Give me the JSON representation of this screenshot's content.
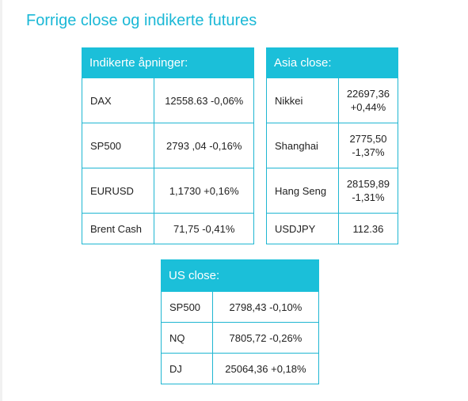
{
  "title": "Forrige close og indikerte futures",
  "indikerte": {
    "header": "Indikerte åpninger:",
    "rows": [
      {
        "name": "DAX",
        "value": "12558.63 -0,06%"
      },
      {
        "name": "SP500",
        "value": "2793 ,04 -0,16%"
      },
      {
        "name": "EURUSD",
        "value": "1,1730 +0,16%"
      },
      {
        "name": "Brent Cash",
        "value": "71,75 -0,41%"
      }
    ]
  },
  "asia": {
    "header": "Asia close:",
    "rows": [
      {
        "name": "Nikkei",
        "value1": "22697,36",
        "value2": "+0,44%"
      },
      {
        "name": "Shanghai",
        "value1": "2775,50",
        "value2": "-1,37%"
      },
      {
        "name": "Hang Seng",
        "value1": "28159,89",
        "value2": "-1,31%"
      },
      {
        "name": "USDJPY",
        "value1": "112.36",
        "value2": ""
      }
    ]
  },
  "us": {
    "header": "US close:",
    "rows": [
      {
        "name": "SP500",
        "value": "2798,43 -0,10%"
      },
      {
        "name": "NQ",
        "value": "7805,72 -0,26%"
      },
      {
        "name": "DJ",
        "value": "25064,36 +0,18%"
      }
    ]
  }
}
